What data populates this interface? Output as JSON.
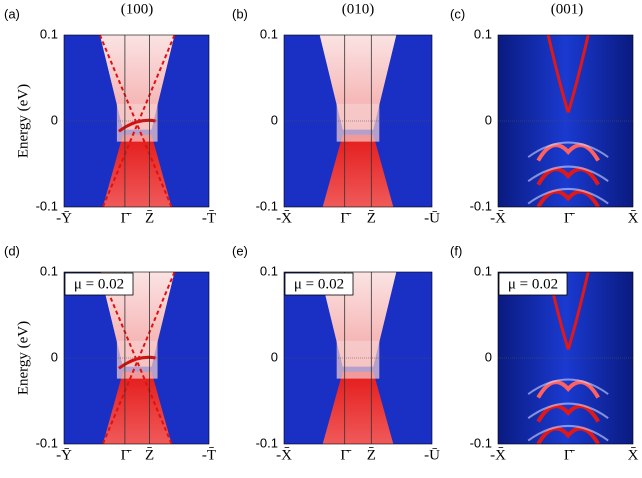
{
  "column_titles": [
    "(100)",
    "(010)",
    "(001)"
  ],
  "panels": [
    {
      "label": "(a)",
      "y_label": "Energy  (eV)",
      "yticks": [
        "0.1",
        "0",
        "-0.1"
      ],
      "kpoints": [
        "-Ȳ",
        "Γ̄",
        "Z̄",
        "-T̄"
      ]
    },
    {
      "label": "(b)",
      "yticks": [
        "0.1",
        "0",
        "-0.1"
      ],
      "kpoints": [
        "-X̄",
        "Γ̄",
        "Z̄",
        "-Ū"
      ]
    },
    {
      "label": "(c)",
      "yticks": [
        "0.1",
        "0",
        "-0.1"
      ],
      "kpoints": [
        "-X̄",
        "Γ̄",
        "X̄"
      ]
    },
    {
      "label": "(d)",
      "y_label": "Energy  (eV)",
      "annotation": "μ = 0.02",
      "yticks": [
        "0.1",
        "0",
        "-0.1"
      ],
      "kpoints": [
        "-Ȳ",
        "Γ̄",
        "Z̄",
        "-T̄"
      ]
    },
    {
      "label": "(e)",
      "annotation": "μ = 0.02",
      "yticks": [
        "0.1",
        "0",
        "-0.1"
      ],
      "kpoints": [
        "-X̄",
        "Γ̄",
        "Z̄",
        "-Ū"
      ]
    },
    {
      "label": "(f)",
      "annotation": "μ = 0.02",
      "yticks": [
        "0.1",
        "0",
        "-0.1"
      ],
      "kpoints": [
        "-X̄",
        "Γ̄",
        "X̄"
      ]
    }
  ]
}
